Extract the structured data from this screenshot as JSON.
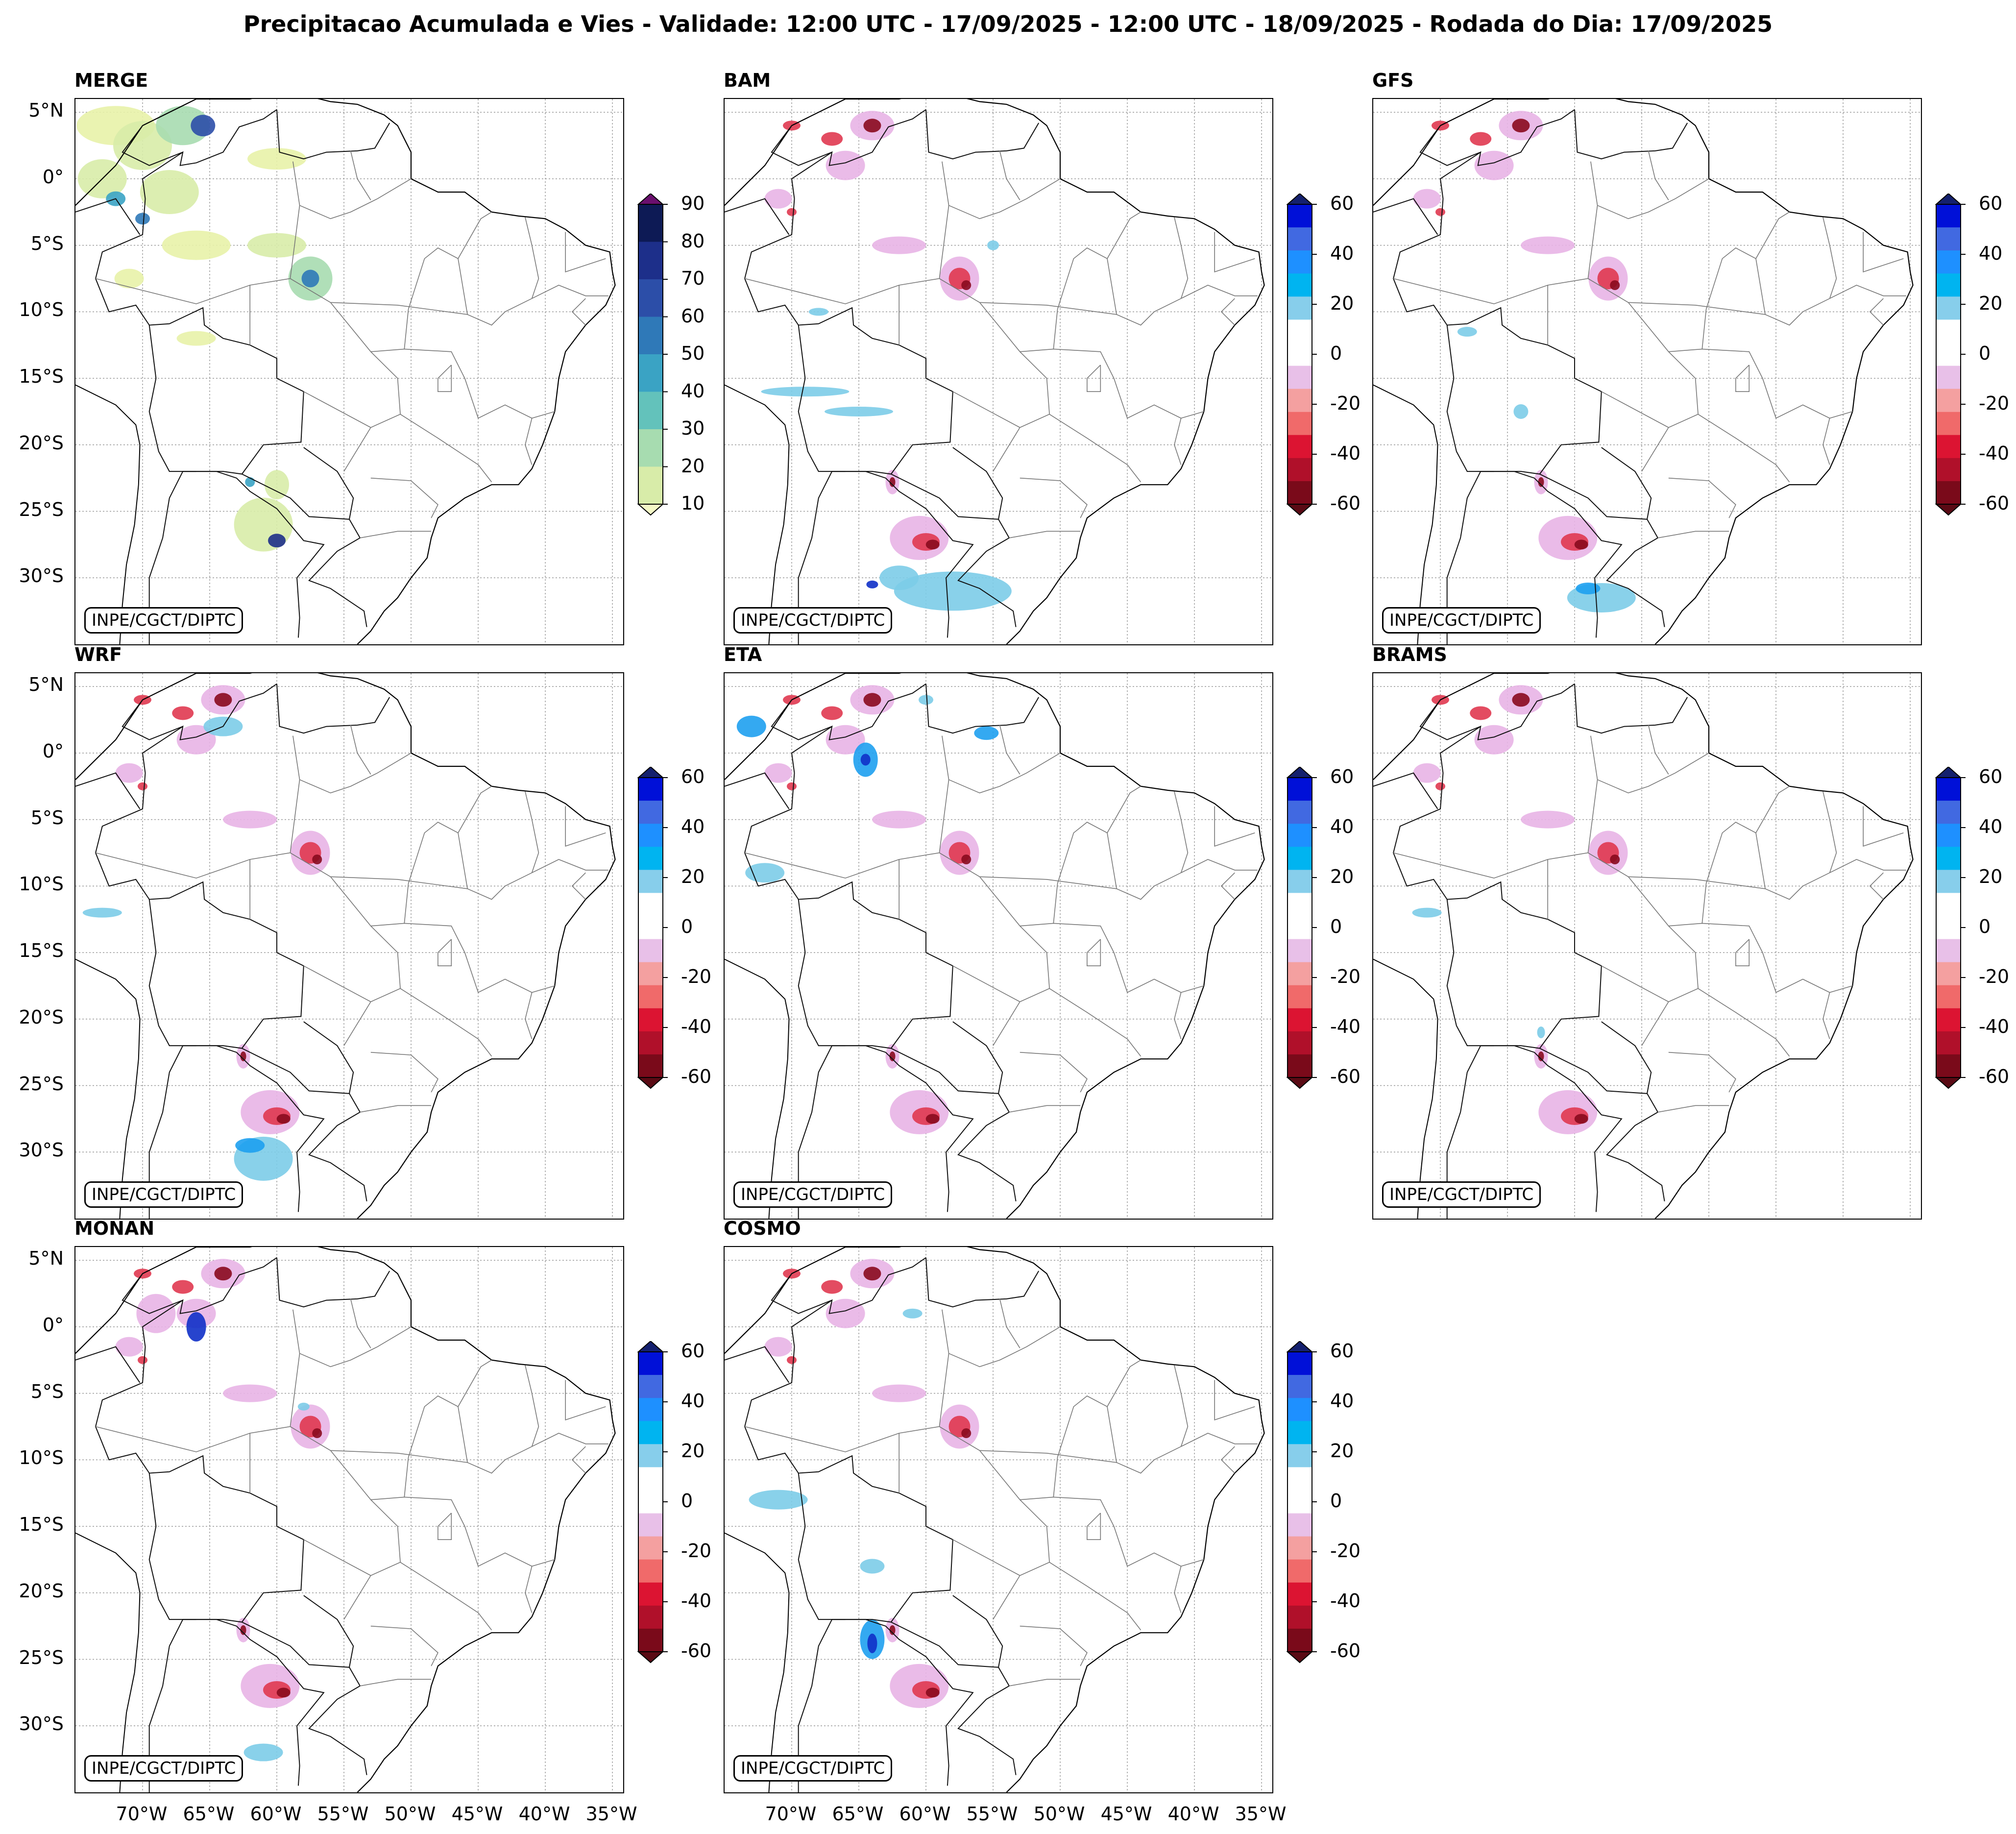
{
  "title": "Precipitacao Acumulada e Vies - Validade: 12:00 UTC - 17/09/2025 - 12:00 UTC - 18/09/2025 - Rodada do Dia: 17/09/2025",
  "credit": "INPE/CGCT/DIPTC",
  "panels": [
    {
      "name": "MERGE"
    },
    {
      "name": "BAM"
    },
    {
      "name": "GFS"
    },
    {
      "name": "WRF"
    },
    {
      "name": "ETA"
    },
    {
      "name": "BRAMS"
    },
    {
      "name": "MONAN"
    },
    {
      "name": "COSMO"
    }
  ],
  "lat_labels": [
    "5°N",
    "0°",
    "5°S",
    "10°S",
    "15°S",
    "20°S",
    "25°S",
    "30°S"
  ],
  "lon_labels": [
    "70°W",
    "65°W",
    "60°W",
    "55°W",
    "50°W",
    "45°W",
    "40°W",
    "35°W"
  ],
  "precip_colorbar": {
    "ticks": [
      "90",
      "80",
      "70",
      "60",
      "50",
      "40",
      "30",
      "20",
      "10"
    ],
    "colors": [
      "#6a0f6e",
      "#0d1a55",
      "#1d2f8a",
      "#2c4ea8",
      "#2f79b8",
      "#3aa3c4",
      "#63c2bb",
      "#a7dcb0",
      "#d8eca9",
      "#f4f8c6"
    ]
  },
  "bias_colorbar": {
    "ticks": [
      "60",
      "40",
      "20",
      "0",
      "-20",
      "-40",
      "-60"
    ],
    "colors": [
      "#14206e",
      "#0010d8",
      "#4169e1",
      "#1e90ff",
      "#00b4f0",
      "#87ceeb",
      "#ffffff",
      "#ffffff",
      "#e8c0e8",
      "#f4a0a0",
      "#f06a6a",
      "#dc1432",
      "#b0102a",
      "#7a0a1a",
      "#5a0a14"
    ]
  }
}
